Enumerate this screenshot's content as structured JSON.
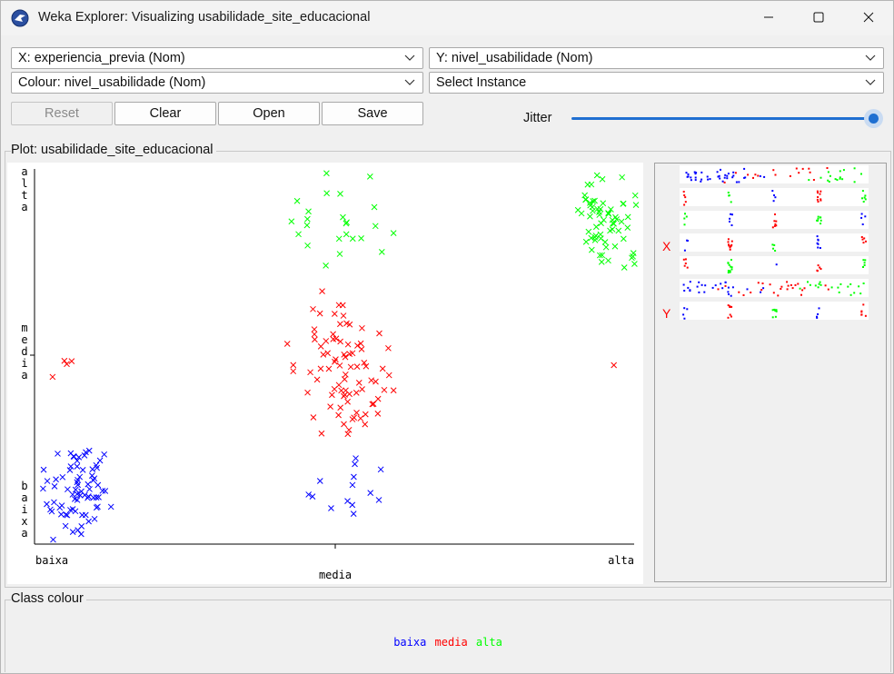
{
  "window": {
    "title": "Weka Explorer: Visualizing usabilidade_site_educacional",
    "controls": [
      "minimize",
      "maximize",
      "close"
    ]
  },
  "selectors": {
    "x_axis": "X: experiencia_previa (Nom)",
    "y_axis": "Y: nivel_usabilidade (Nom)",
    "colour": "Colour: nivel_usabilidade (Nom)",
    "instance": "Select Instance"
  },
  "buttons": {
    "reset": "Reset",
    "clear": "Clear",
    "open": "Open",
    "save": "Save"
  },
  "jitter": {
    "label": "Jitter",
    "value": 1.0
  },
  "plot": {
    "title": "Plot: usabilidade_site_educacional",
    "x_label": "media",
    "x_ticks": [
      "baixa",
      "alta"
    ],
    "y_ticks": [
      "alta",
      "media",
      "baixa"
    ]
  },
  "matrix": {
    "x_marker": "X",
    "y_marker": "Y"
  },
  "class_colour": {
    "title": "Class colour",
    "classes": [
      {
        "name": "baixa",
        "color": "#0000ff"
      },
      {
        "name": "media",
        "color": "#ff0000"
      },
      {
        "name": "alta",
        "color": "#00ff00"
      }
    ]
  },
  "chart_data": {
    "type": "scatter",
    "x_attribute": "experiencia_previa",
    "y_attribute": "nivel_usabilidade",
    "colour_attribute": "nivel_usabilidade",
    "x_categories": [
      "baixa",
      "media",
      "alta"
    ],
    "y_categories": [
      "baixa",
      "media",
      "alta"
    ],
    "jitter": "max",
    "clusters": [
      {
        "x": "baixa",
        "y": "baixa",
        "class": "baixa",
        "count": 75
      },
      {
        "x": "media",
        "y": "baixa",
        "class": "baixa",
        "count": 14
      },
      {
        "x": "baixa",
        "y": "media",
        "class": "media",
        "count": 4
      },
      {
        "x": "media",
        "y": "media",
        "class": "media",
        "count": 85
      },
      {
        "x": "alta",
        "y": "media",
        "class": "media",
        "count": 1
      },
      {
        "x": "media",
        "y": "alta",
        "class": "alta",
        "count": 24
      },
      {
        "x": "alta",
        "y": "alta",
        "class": "alta",
        "count": 65
      }
    ]
  }
}
